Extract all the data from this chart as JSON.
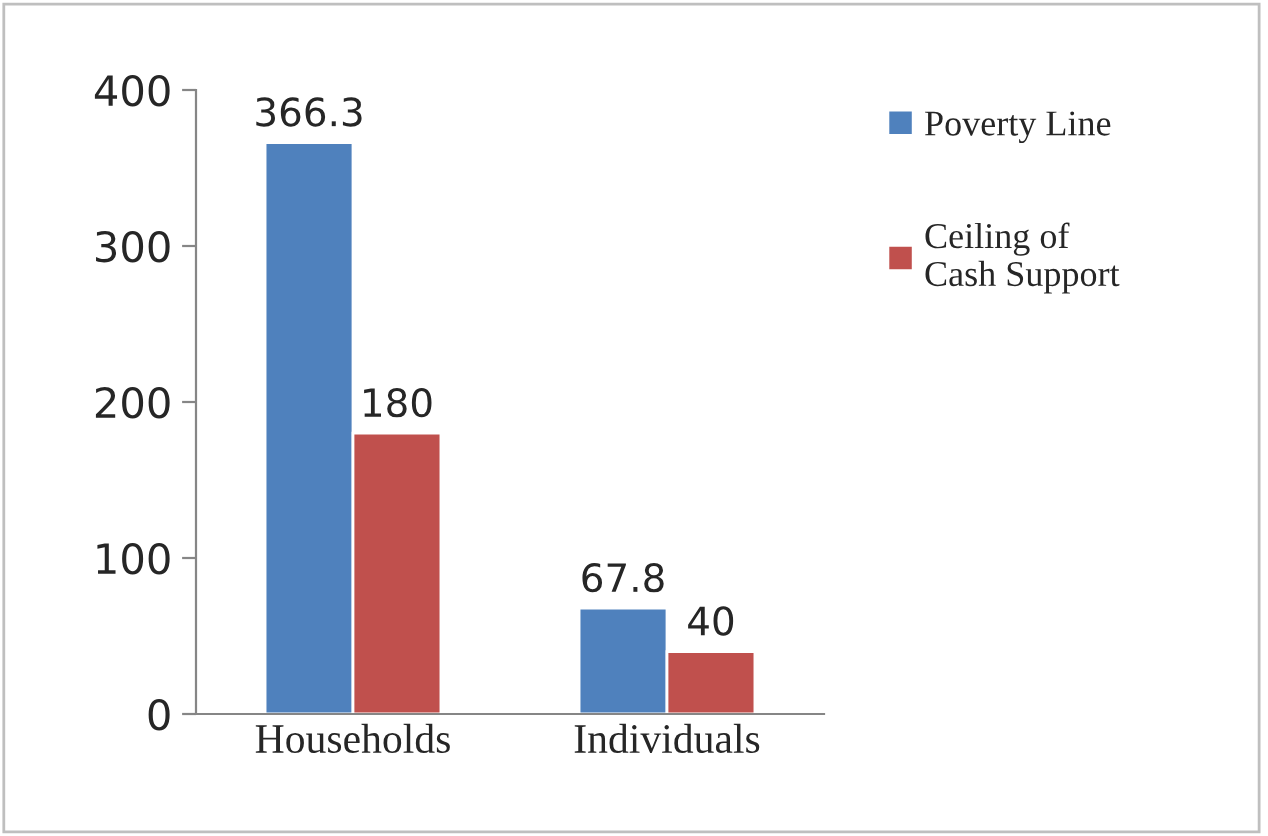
{
  "chart_data": {
    "type": "bar",
    "categories": [
      "Households",
      "Individuals"
    ],
    "series": [
      {
        "name": "Poverty Line",
        "color": "#4f81bd",
        "values": [
          366.3,
          67.8
        ]
      },
      {
        "name": "Ceiling of\nCash Support",
        "color": "#c0504d",
        "values": [
          180,
          40
        ]
      }
    ],
    "ylim": [
      0,
      400
    ],
    "yticks": [
      0,
      100,
      200,
      300,
      400
    ],
    "data_labels": true,
    "grid": false,
    "legend": "right"
  }
}
